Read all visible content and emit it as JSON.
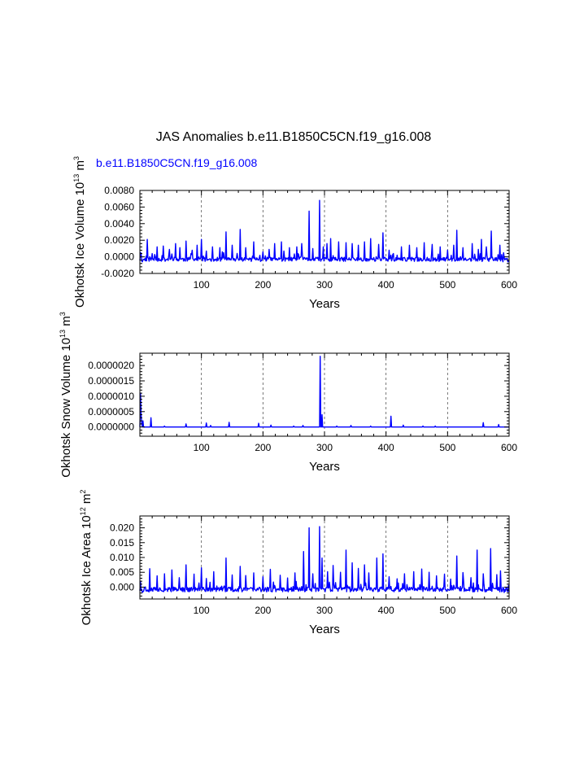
{
  "figure": {
    "title": "JAS Anomalies b.e11.B1850C5CN.f19_g16.008",
    "series_label": "b.e11.B1850C5CN.f19_g16.008",
    "series_color": "#0000ff",
    "text_color": "#000000"
  },
  "chart_data": [
    {
      "type": "line",
      "ylabel": "Okhotsk Ice Volume 10",
      "ylabel_exp1": "13",
      "ylabel_unit": " m",
      "ylabel_exp2": "3",
      "xlabel": "Years",
      "xlim": [
        0,
        600
      ],
      "ylim": [
        -0.002,
        0.008
      ],
      "xticks": [
        100,
        200,
        300,
        400,
        500,
        600
      ],
      "xtick_labels": [
        "100",
        "200",
        "300",
        "400",
        "500",
        "600"
      ],
      "yticks": [
        -0.002,
        0.0,
        0.002,
        0.004,
        0.006,
        0.008
      ],
      "ytick_labels": [
        "-0.0020",
        "0.0000",
        "0.0020",
        "0.0040",
        "0.0060",
        "0.0080"
      ],
      "grid": "vertical-dashed",
      "baseline": -0.0003,
      "noise": 0.0005,
      "seed": 11,
      "spikes": [
        [
          1,
          0.0005
        ],
        [
          4,
          -0.0006
        ],
        [
          12,
          0.0021
        ],
        [
          20,
          0.0004
        ],
        [
          28,
          0.0012
        ],
        [
          38,
          0.0013
        ],
        [
          48,
          0.0009
        ],
        [
          58,
          0.0016
        ],
        [
          65,
          0.0011
        ],
        [
          75,
          0.0019
        ],
        [
          85,
          0.0008
        ],
        [
          93,
          0.0014
        ],
        [
          100,
          0.0021
        ],
        [
          108,
          0.0007
        ],
        [
          118,
          0.0012
        ],
        [
          130,
          0.0011
        ],
        [
          140,
          0.003
        ],
        [
          150,
          0.0014
        ],
        [
          163,
          0.0033
        ],
        [
          172,
          0.0011
        ],
        [
          185,
          0.0018
        ],
        [
          200,
          0.0006
        ],
        [
          210,
          0.0009
        ],
        [
          219,
          0.0016
        ],
        [
          230,
          0.0018
        ],
        [
          243,
          0.0011
        ],
        [
          255,
          0.0012
        ],
        [
          263,
          0.0016
        ],
        [
          275,
          0.0055
        ],
        [
          281,
          0.001
        ],
        [
          292,
          0.0068
        ],
        [
          298,
          0.0012
        ],
        [
          304,
          0.0016
        ],
        [
          310,
          0.0022
        ],
        [
          323,
          0.0018
        ],
        [
          335,
          0.0017
        ],
        [
          345,
          0.0016
        ],
        [
          355,
          0.0014
        ],
        [
          365,
          0.0018
        ],
        [
          375,
          0.0022
        ],
        [
          388,
          0.0015
        ],
        [
          395,
          0.0029
        ],
        [
          405,
          0.0008
        ],
        [
          412,
          0.0004
        ],
        [
          425,
          0.0012
        ],
        [
          438,
          0.0014
        ],
        [
          450,
          0.0011
        ],
        [
          462,
          0.0017
        ],
        [
          475,
          0.0015
        ],
        [
          488,
          0.0012
        ],
        [
          500,
          0.0008
        ],
        [
          510,
          0.0014
        ],
        [
          515,
          0.0032
        ],
        [
          525,
          0.0011
        ],
        [
          540,
          0.0016
        ],
        [
          550,
          0.0009
        ],
        [
          555,
          0.0021
        ],
        [
          563,
          0.0012
        ],
        [
          571,
          0.0031
        ],
        [
          585,
          0.0014
        ],
        [
          590,
          -0.0006
        ],
        [
          598,
          -0.0006
        ]
      ]
    },
    {
      "type": "line",
      "ylabel": "Okhotsk Snow Volume 10",
      "ylabel_exp1": "13",
      "ylabel_unit": " m",
      "ylabel_exp2": "3",
      "xlabel": "Years",
      "xlim": [
        0,
        600
      ],
      "ylim": [
        -3e-07,
        2.4e-06
      ],
      "xticks": [
        100,
        200,
        300,
        400,
        500,
        600
      ],
      "xtick_labels": [
        "100",
        "200",
        "300",
        "400",
        "500",
        "600"
      ],
      "yticks": [
        0.0,
        5e-07,
        1e-06,
        1.5e-06,
        2e-06
      ],
      "ytick_labels": [
        "0.0000000",
        "0.0000005",
        "0.0000010",
        "0.0000015",
        "0.0000020"
      ],
      "grid": "vertical-dashed",
      "baseline": 0.0,
      "noise": 0.0,
      "seed": 23,
      "spikes": [
        [
          1,
          1.1e-06
        ],
        [
          2,
          4e-07
        ],
        [
          3,
          1e-07
        ],
        [
          5,
          2e-07
        ],
        [
          18,
          3e-07
        ],
        [
          40,
          3e-08
        ],
        [
          75,
          1e-07
        ],
        [
          108,
          1.3e-07
        ],
        [
          115,
          5e-08
        ],
        [
          145,
          1.5e-07
        ],
        [
          193,
          1.2e-07
        ],
        [
          213,
          6e-08
        ],
        [
          250,
          3e-08
        ],
        [
          265,
          5e-08
        ],
        [
          293,
          2.3e-06
        ],
        [
          296,
          4e-07
        ],
        [
          320,
          3e-08
        ],
        [
          343,
          5e-08
        ],
        [
          375,
          3e-08
        ],
        [
          408,
          3.5e-07
        ],
        [
          428,
          6e-08
        ],
        [
          460,
          3e-08
        ],
        [
          480,
          3e-08
        ],
        [
          558,
          1.4e-07
        ],
        [
          583,
          8e-08
        ]
      ]
    },
    {
      "type": "line",
      "ylabel": "Okhotsk Ice Area 10",
      "ylabel_exp1": "12",
      "ylabel_unit": " m",
      "ylabel_exp2": "2",
      "xlabel": "Years",
      "xlim": [
        0,
        600
      ],
      "ylim": [
        -0.004,
        0.024
      ],
      "xticks": [
        100,
        200,
        300,
        400,
        500,
        600
      ],
      "xtick_labels": [
        "100",
        "200",
        "300",
        "400",
        "500",
        "600"
      ],
      "yticks": [
        0.0,
        0.005,
        0.01,
        0.015,
        0.02
      ],
      "ytick_labels": [
        "0.000",
        "0.005",
        "0.010",
        "0.015",
        "0.020"
      ],
      "grid": "vertical-dashed",
      "baseline": -0.0008,
      "noise": 0.0016,
      "seed": 37,
      "spikes": [
        [
          1,
          0.002
        ],
        [
          4,
          -0.0018
        ],
        [
          16,
          0.0062
        ],
        [
          28,
          0.0038
        ],
        [
          40,
          0.0045
        ],
        [
          52,
          0.0058
        ],
        [
          64,
          0.0032
        ],
        [
          75,
          0.0075
        ],
        [
          88,
          0.0044
        ],
        [
          100,
          0.0065
        ],
        [
          108,
          0.0029
        ],
        [
          120,
          0.0052
        ],
        [
          140,
          0.0098
        ],
        [
          150,
          0.0041
        ],
        [
          163,
          0.007
        ],
        [
          172,
          0.0039
        ],
        [
          185,
          0.0048
        ],
        [
          200,
          0.0035
        ],
        [
          212,
          0.006
        ],
        [
          228,
          0.004
        ],
        [
          240,
          0.0031
        ],
        [
          252,
          0.0048
        ],
        [
          266,
          0.012
        ],
        [
          275,
          0.02
        ],
        [
          281,
          0.0045
        ],
        [
          292,
          0.0204
        ],
        [
          296,
          0.0098
        ],
        [
          305,
          0.0052
        ],
        [
          314,
          0.0073
        ],
        [
          326,
          0.005
        ],
        [
          335,
          0.0125
        ],
        [
          345,
          0.0082
        ],
        [
          355,
          0.0063
        ],
        [
          365,
          0.0075
        ],
        [
          372,
          0.0048
        ],
        [
          385,
          0.0098
        ],
        [
          395,
          0.0112
        ],
        [
          405,
          0.0035
        ],
        [
          418,
          0.0028
        ],
        [
          430,
          0.0045
        ],
        [
          445,
          0.0052
        ],
        [
          458,
          0.0061
        ],
        [
          470,
          0.005
        ],
        [
          482,
          0.0038
        ],
        [
          495,
          0.0044
        ],
        [
          505,
          0.0027
        ],
        [
          515,
          0.0105
        ],
        [
          525,
          0.0049
        ],
        [
          538,
          0.0032
        ],
        [
          548,
          0.0125
        ],
        [
          558,
          0.0045
        ],
        [
          570,
          0.013
        ],
        [
          580,
          0.0042
        ],
        [
          586,
          0.0055
        ],
        [
          592,
          -0.0018
        ],
        [
          598,
          -0.0015
        ]
      ]
    }
  ]
}
